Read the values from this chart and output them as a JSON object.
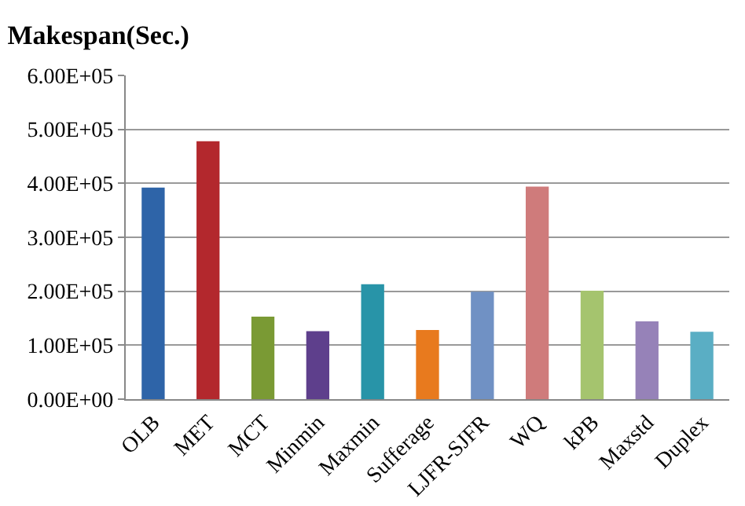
{
  "chart_data": {
    "type": "bar",
    "title": "Makespan(Sec.)",
    "categories": [
      "OLB",
      "MET",
      "MCT",
      "Minmin",
      "Maxmin",
      "Sufferage",
      "LJFR-SJFR",
      "WQ",
      "kPB",
      "Maxstd",
      "Duplex"
    ],
    "values": [
      392000,
      478000,
      153000,
      126000,
      213000,
      128000,
      199000,
      394000,
      201000,
      144000,
      125000
    ],
    "colors": [
      "#2e64a8",
      "#b3282d",
      "#7a9a34",
      "#5e3f8c",
      "#2894a8",
      "#e87a1e",
      "#7091c4",
      "#cf7b7b",
      "#a5c46e",
      "#9682b8",
      "#5aaec4"
    ],
    "ylim": [
      0,
      600000
    ],
    "yticks": [
      {
        "value": 0,
        "label": "0.00E+00"
      },
      {
        "value": 100000,
        "label": "1.00E+05"
      },
      {
        "value": 200000,
        "label": "2.00E+05"
      },
      {
        "value": 300000,
        "label": "3.00E+05"
      },
      {
        "value": 400000,
        "label": "4.00E+05"
      },
      {
        "value": 500000,
        "label": "5.00E+05"
      },
      {
        "value": 600000,
        "label": "6.00E+05"
      }
    ],
    "grid": "y"
  }
}
